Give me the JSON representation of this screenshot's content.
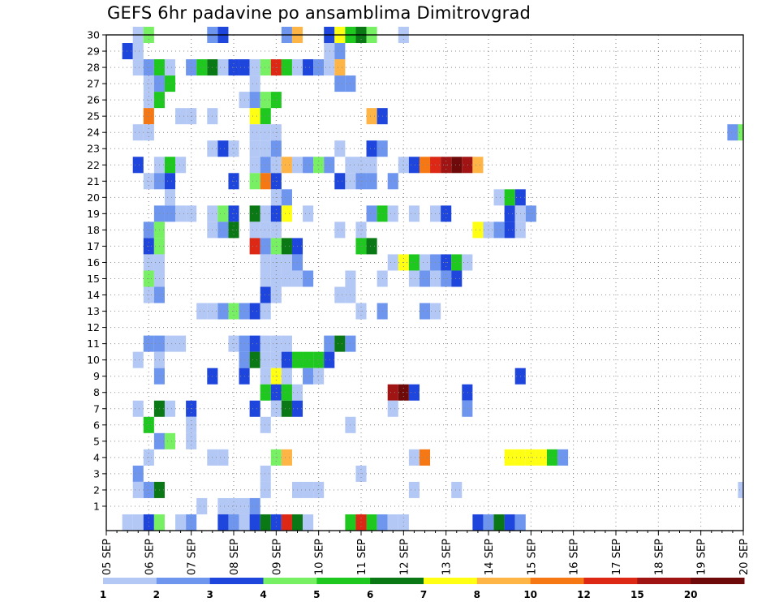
{
  "chart_data": {
    "type": "heatmap",
    "title": "GEFS 6hr padavine po ansamblima Dimitrovgrad",
    "xlabel": "",
    "ylabel": "",
    "x_tick_labels": [
      "05 SEP",
      "06 SEP",
      "07 SEP",
      "08 SEP",
      "09 SEP",
      "10 SEP",
      "11 SEP",
      "12 SEP",
      "13 SEP",
      "14 SEP",
      "15 SEP",
      "16 SEP",
      "17 SEP",
      "18 SEP",
      "19 SEP",
      "20 SEP"
    ],
    "y_tick_labels": [
      "1",
      "2",
      "3",
      "4",
      "5",
      "6",
      "7",
      "8",
      "9",
      "10",
      "11",
      "12",
      "13",
      "14",
      "15",
      "16",
      "17",
      "18",
      "19",
      "20",
      "21",
      "22",
      "23",
      "24",
      "25",
      "26",
      "27",
      "28",
      "29",
      "30"
    ],
    "x_range": [
      0,
      60
    ],
    "y_range": [
      0,
      30
    ],
    "grid": true,
    "legend_placement": "bottom",
    "legend_bins": [
      {
        "color": "#b4c8f5",
        "label": "1"
      },
      {
        "color": "#6e96ee",
        "label": "2"
      },
      {
        "color": "#1e46dc",
        "label": "3"
      },
      {
        "color": "#78f064",
        "label": "4"
      },
      {
        "color": "#1ec81e",
        "label": "5"
      },
      {
        "color": "#0a7814",
        "label": "6"
      },
      {
        "color": "#ffff14",
        "label": "7"
      },
      {
        "color": "#ffb446",
        "label": "8"
      },
      {
        "color": "#f57814",
        "label": "10"
      },
      {
        "color": "#dc2814",
        "label": "12"
      },
      {
        "color": "#a01414",
        "label": "15"
      },
      {
        "color": "#6e0a0a",
        "label": "20"
      }
    ],
    "cells_note": "each cell = [time_step, member, color_bin_index]; time_step 0 = 05 SEP 00UTC, 6-hour steps; member 0 = ensemble mean row",
    "cells": [
      [
        3,
        30,
        0
      ],
      [
        4,
        30,
        3
      ],
      [
        10,
        30,
        1
      ],
      [
        11,
        30,
        2
      ],
      [
        17,
        30,
        1
      ],
      [
        18,
        30,
        7
      ],
      [
        21,
        30,
        2
      ],
      [
        22,
        30,
        6
      ],
      [
        23,
        30,
        4
      ],
      [
        24,
        30,
        5
      ],
      [
        25,
        30,
        3
      ],
      [
        28,
        30,
        0
      ],
      [
        2,
        29,
        2
      ],
      [
        3,
        29,
        0
      ],
      [
        21,
        29,
        0
      ],
      [
        22,
        29,
        1
      ],
      [
        3,
        28,
        0
      ],
      [
        4,
        28,
        1
      ],
      [
        5,
        28,
        4
      ],
      [
        6,
        28,
        0
      ],
      [
        8,
        28,
        1
      ],
      [
        9,
        28,
        4
      ],
      [
        10,
        28,
        5
      ],
      [
        11,
        28,
        0
      ],
      [
        12,
        28,
        2
      ],
      [
        13,
        28,
        2
      ],
      [
        14,
        28,
        0
      ],
      [
        15,
        28,
        3
      ],
      [
        16,
        28,
        9
      ],
      [
        17,
        28,
        4
      ],
      [
        18,
        28,
        0
      ],
      [
        19,
        28,
        2
      ],
      [
        20,
        28,
        1
      ],
      [
        22,
        28,
        7
      ],
      [
        21,
        28,
        0
      ],
      [
        4,
        27,
        0
      ],
      [
        5,
        27,
        1
      ],
      [
        6,
        27,
        4
      ],
      [
        14,
        27,
        0
      ],
      [
        22,
        27,
        1
      ],
      [
        23,
        27,
        1
      ],
      [
        4,
        26,
        0
      ],
      [
        5,
        26,
        4
      ],
      [
        13,
        26,
        0
      ],
      [
        14,
        26,
        1
      ],
      [
        15,
        26,
        3
      ],
      [
        16,
        26,
        4
      ],
      [
        4,
        25,
        8
      ],
      [
        7,
        25,
        0
      ],
      [
        8,
        25,
        0
      ],
      [
        10,
        25,
        0
      ],
      [
        14,
        25,
        6
      ],
      [
        15,
        25,
        4
      ],
      [
        25,
        25,
        7
      ],
      [
        26,
        25,
        2
      ],
      [
        3,
        24,
        0
      ],
      [
        4,
        24,
        0
      ],
      [
        14,
        24,
        0
      ],
      [
        15,
        24,
        0
      ],
      [
        16,
        24,
        0
      ],
      [
        59,
        24,
        1
      ],
      [
        60,
        24,
        3
      ],
      [
        10,
        23,
        0
      ],
      [
        11,
        23,
        2
      ],
      [
        12,
        23,
        0
      ],
      [
        14,
        23,
        0
      ],
      [
        15,
        23,
        0
      ],
      [
        16,
        23,
        1
      ],
      [
        22,
        23,
        0
      ],
      [
        25,
        23,
        2
      ],
      [
        26,
        23,
        1
      ],
      [
        3,
        22,
        2
      ],
      [
        5,
        22,
        0
      ],
      [
        6,
        22,
        4
      ],
      [
        7,
        22,
        0
      ],
      [
        14,
        22,
        0
      ],
      [
        15,
        22,
        1
      ],
      [
        16,
        22,
        0
      ],
      [
        17,
        22,
        7
      ],
      [
        18,
        22,
        0
      ],
      [
        19,
        22,
        1
      ],
      [
        20,
        22,
        3
      ],
      [
        21,
        22,
        1
      ],
      [
        23,
        22,
        0
      ],
      [
        24,
        22,
        0
      ],
      [
        25,
        22,
        0
      ],
      [
        28,
        22,
        0
      ],
      [
        29,
        22,
        2
      ],
      [
        30,
        22,
        8
      ],
      [
        31,
        22,
        9
      ],
      [
        32,
        22,
        10
      ],
      [
        33,
        22,
        11
      ],
      [
        34,
        22,
        10
      ],
      [
        35,
        22,
        7
      ],
      [
        4,
        21,
        0
      ],
      [
        5,
        21,
        1
      ],
      [
        6,
        21,
        2
      ],
      [
        12,
        21,
        2
      ],
      [
        14,
        21,
        3
      ],
      [
        15,
        21,
        8
      ],
      [
        16,
        21,
        2
      ],
      [
        22,
        21,
        2
      ],
      [
        23,
        21,
        0
      ],
      [
        24,
        21,
        1
      ],
      [
        25,
        21,
        1
      ],
      [
        27,
        21,
        1
      ],
      [
        6,
        20,
        0
      ],
      [
        16,
        20,
        0
      ],
      [
        17,
        20,
        1
      ],
      [
        37,
        20,
        0
      ],
      [
        38,
        20,
        4
      ],
      [
        39,
        20,
        2
      ],
      [
        5,
        19,
        1
      ],
      [
        6,
        19,
        1
      ],
      [
        7,
        19,
        0
      ],
      [
        8,
        19,
        0
      ],
      [
        10,
        19,
        0
      ],
      [
        11,
        19,
        3
      ],
      [
        12,
        19,
        2
      ],
      [
        14,
        19,
        5
      ],
      [
        15,
        19,
        0
      ],
      [
        16,
        19,
        2
      ],
      [
        17,
        19,
        6
      ],
      [
        19,
        19,
        0
      ],
      [
        25,
        19,
        1
      ],
      [
        26,
        19,
        4
      ],
      [
        27,
        19,
        0
      ],
      [
        29,
        19,
        0
      ],
      [
        31,
        19,
        0
      ],
      [
        32,
        19,
        2
      ],
      [
        38,
        19,
        2
      ],
      [
        39,
        19,
        0
      ],
      [
        40,
        19,
        1
      ],
      [
        4,
        18,
        1
      ],
      [
        5,
        18,
        3
      ],
      [
        10,
        18,
        0
      ],
      [
        11,
        18,
        1
      ],
      [
        12,
        18,
        5
      ],
      [
        14,
        18,
        0
      ],
      [
        15,
        18,
        0
      ],
      [
        16,
        18,
        0
      ],
      [
        22,
        18,
        0
      ],
      [
        24,
        18,
        0
      ],
      [
        35,
        18,
        6
      ],
      [
        36,
        18,
        0
      ],
      [
        37,
        18,
        1
      ],
      [
        38,
        18,
        2
      ],
      [
        39,
        18,
        0
      ],
      [
        4,
        17,
        2
      ],
      [
        5,
        17,
        3
      ],
      [
        14,
        17,
        9
      ],
      [
        15,
        17,
        1
      ],
      [
        16,
        17,
        3
      ],
      [
        17,
        17,
        5
      ],
      [
        18,
        17,
        2
      ],
      [
        24,
        17,
        4
      ],
      [
        25,
        17,
        5
      ],
      [
        4,
        16,
        0
      ],
      [
        5,
        16,
        0
      ],
      [
        15,
        16,
        0
      ],
      [
        16,
        16,
        0
      ],
      [
        17,
        16,
        0
      ],
      [
        18,
        16,
        1
      ],
      [
        27,
        16,
        0
      ],
      [
        28,
        16,
        6
      ],
      [
        29,
        16,
        4
      ],
      [
        30,
        16,
        0
      ],
      [
        31,
        16,
        1
      ],
      [
        32,
        16,
        2
      ],
      [
        33,
        16,
        4
      ],
      [
        34,
        16,
        0
      ],
      [
        4,
        15,
        3
      ],
      [
        5,
        15,
        0
      ],
      [
        15,
        15,
        0
      ],
      [
        16,
        15,
        0
      ],
      [
        17,
        15,
        0
      ],
      [
        18,
        15,
        0
      ],
      [
        19,
        15,
        1
      ],
      [
        23,
        15,
        0
      ],
      [
        26,
        15,
        0
      ],
      [
        29,
        15,
        0
      ],
      [
        30,
        15,
        1
      ],
      [
        31,
        15,
        0
      ],
      [
        32,
        15,
        1
      ],
      [
        33,
        15,
        2
      ],
      [
        4,
        14,
        0
      ],
      [
        5,
        14,
        1
      ],
      [
        15,
        14,
        2
      ],
      [
        16,
        14,
        0
      ],
      [
        22,
        14,
        0
      ],
      [
        23,
        14,
        0
      ],
      [
        9,
        13,
        0
      ],
      [
        10,
        13,
        0
      ],
      [
        11,
        13,
        1
      ],
      [
        12,
        13,
        3
      ],
      [
        13,
        13,
        1
      ],
      [
        14,
        13,
        2
      ],
      [
        15,
        13,
        0
      ],
      [
        24,
        13,
        0
      ],
      [
        26,
        13,
        1
      ],
      [
        30,
        13,
        1
      ],
      [
        31,
        13,
        0
      ],
      [
        4,
        11,
        1
      ],
      [
        5,
        11,
        1
      ],
      [
        6,
        11,
        0
      ],
      [
        7,
        11,
        0
      ],
      [
        12,
        11,
        0
      ],
      [
        13,
        11,
        1
      ],
      [
        14,
        11,
        2
      ],
      [
        15,
        11,
        0
      ],
      [
        16,
        11,
        0
      ],
      [
        17,
        11,
        0
      ],
      [
        21,
        11,
        1
      ],
      [
        22,
        11,
        5
      ],
      [
        23,
        11,
        1
      ],
      [
        3,
        10,
        0
      ],
      [
        5,
        10,
        0
      ],
      [
        13,
        10,
        1
      ],
      [
        14,
        10,
        5
      ],
      [
        15,
        10,
        0
      ],
      [
        16,
        10,
        0
      ],
      [
        17,
        10,
        2
      ],
      [
        18,
        10,
        4
      ],
      [
        19,
        10,
        4
      ],
      [
        20,
        10,
        4
      ],
      [
        21,
        10,
        2
      ],
      [
        5,
        9,
        1
      ],
      [
        10,
        9,
        2
      ],
      [
        13,
        9,
        2
      ],
      [
        15,
        9,
        0
      ],
      [
        16,
        9,
        6
      ],
      [
        17,
        9,
        0
      ],
      [
        19,
        9,
        1
      ],
      [
        20,
        9,
        0
      ],
      [
        39,
        9,
        2
      ],
      [
        15,
        8,
        4
      ],
      [
        16,
        8,
        2
      ],
      [
        17,
        8,
        4
      ],
      [
        18,
        8,
        0
      ],
      [
        27,
        8,
        10
      ],
      [
        28,
        8,
        11
      ],
      [
        29,
        8,
        2
      ],
      [
        34,
        8,
        2
      ],
      [
        3,
        7,
        0
      ],
      [
        5,
        7,
        5
      ],
      [
        6,
        7,
        0
      ],
      [
        8,
        7,
        2
      ],
      [
        14,
        7,
        2
      ],
      [
        16,
        7,
        0
      ],
      [
        17,
        7,
        5
      ],
      [
        18,
        7,
        2
      ],
      [
        27,
        7,
        0
      ],
      [
        34,
        7,
        1
      ],
      [
        4,
        6,
        4
      ],
      [
        8,
        6,
        0
      ],
      [
        15,
        6,
        0
      ],
      [
        23,
        6,
        0
      ],
      [
        5,
        5,
        1
      ],
      [
        6,
        5,
        3
      ],
      [
        8,
        5,
        0
      ],
      [
        4,
        4,
        0
      ],
      [
        10,
        4,
        0
      ],
      [
        11,
        4,
        0
      ],
      [
        16,
        4,
        3
      ],
      [
        17,
        4,
        7
      ],
      [
        29,
        4,
        0
      ],
      [
        30,
        4,
        8
      ],
      [
        39,
        4,
        6
      ],
      [
        40,
        4,
        6
      ],
      [
        41,
        4,
        6
      ],
      [
        42,
        4,
        4
      ],
      [
        43,
        4,
        1
      ],
      [
        38,
        4,
        6
      ],
      [
        3,
        3,
        1
      ],
      [
        15,
        3,
        0
      ],
      [
        24,
        3,
        0
      ],
      [
        3,
        2,
        0
      ],
      [
        4,
        2,
        1
      ],
      [
        5,
        2,
        5
      ],
      [
        15,
        2,
        0
      ],
      [
        18,
        2,
        0
      ],
      [
        19,
        2,
        0
      ],
      [
        20,
        2,
        0
      ],
      [
        29,
        2,
        0
      ],
      [
        33,
        2,
        0
      ],
      [
        60,
        2,
        0
      ],
      [
        9,
        1,
        0
      ],
      [
        11,
        1,
        0
      ],
      [
        12,
        1,
        0
      ],
      [
        13,
        1,
        0
      ],
      [
        14,
        1,
        1
      ],
      [
        2,
        0,
        0
      ],
      [
        3,
        0,
        0
      ],
      [
        4,
        0,
        2
      ],
      [
        5,
        0,
        3
      ],
      [
        7,
        0,
        0
      ],
      [
        8,
        0,
        1
      ],
      [
        11,
        0,
        2
      ],
      [
        12,
        0,
        1
      ],
      [
        13,
        0,
        0
      ],
      [
        14,
        0,
        2
      ],
      [
        15,
        0,
        5
      ],
      [
        16,
        0,
        2
      ],
      [
        17,
        0,
        9
      ],
      [
        18,
        0,
        5
      ],
      [
        19,
        0,
        0
      ],
      [
        23,
        0,
        4
      ],
      [
        24,
        0,
        9
      ],
      [
        25,
        0,
        4
      ],
      [
        26,
        0,
        1
      ],
      [
        27,
        0,
        0
      ],
      [
        28,
        0,
        0
      ],
      [
        35,
        0,
        2
      ],
      [
        36,
        0,
        1
      ],
      [
        37,
        0,
        5
      ],
      [
        38,
        0,
        2
      ],
      [
        39,
        0,
        1
      ]
    ]
  }
}
